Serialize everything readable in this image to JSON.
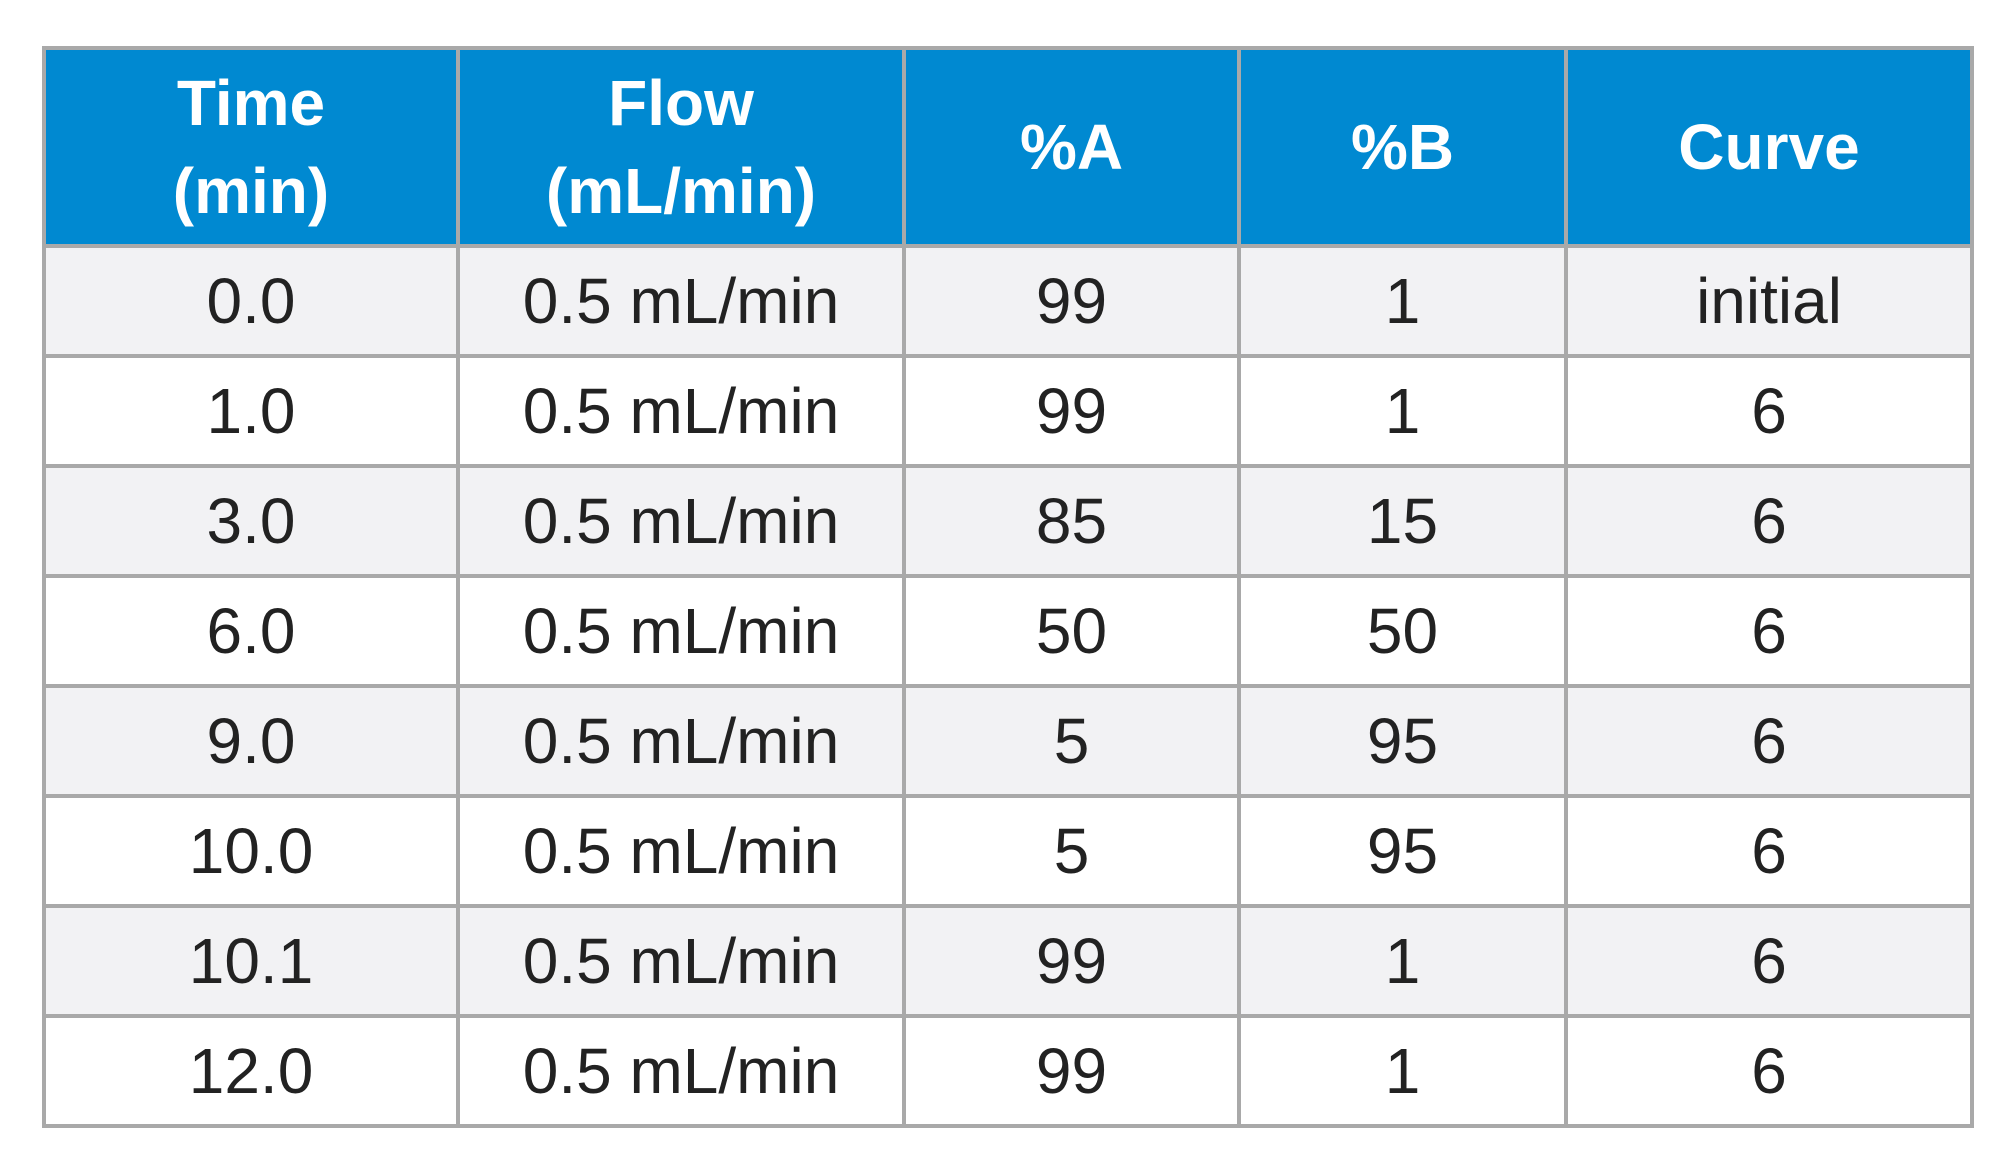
{
  "table": {
    "headers": [
      {
        "line1": "Time",
        "line2": "(min)"
      },
      {
        "line1": "Flow",
        "line2": "(mL/min)"
      },
      {
        "line1": "%A",
        "line2": ""
      },
      {
        "line1": "%B",
        "line2": ""
      },
      {
        "line1": "Curve",
        "line2": ""
      }
    ],
    "rows": [
      [
        "0.0",
        "0.5 mL/min",
        "99",
        "1",
        "initial"
      ],
      [
        "1.0",
        "0.5 mL/min",
        "99",
        "1",
        "6"
      ],
      [
        "3.0",
        "0.5 mL/min",
        "85",
        "15",
        "6"
      ],
      [
        "6.0",
        "0.5 mL/min",
        "50",
        "50",
        "6"
      ],
      [
        "9.0",
        "0.5 mL/min",
        "5",
        "95",
        "6"
      ],
      [
        "10.0",
        "0.5 mL/min",
        "5",
        "95",
        "6"
      ],
      [
        "10.1",
        "0.5 mL/min",
        "99",
        "1",
        "6"
      ],
      [
        "12.0",
        "0.5 mL/min",
        "99",
        "1",
        "6"
      ]
    ]
  },
  "colors": {
    "header_bg": "#0089d1",
    "header_text": "#ffffff",
    "row_alt_bg": "#f2f2f4",
    "border": "#a9a9a9"
  }
}
